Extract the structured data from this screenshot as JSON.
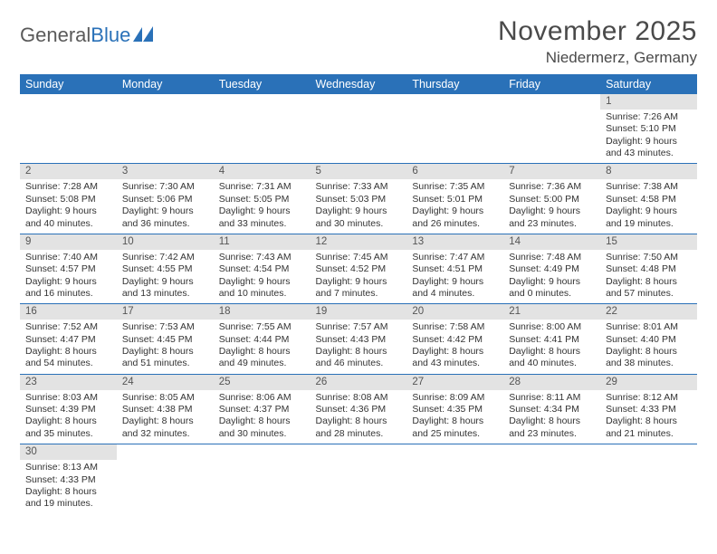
{
  "logo": {
    "part1": "General",
    "part2": "Blue"
  },
  "title": "November 2025",
  "location": "Niedermerz, Germany",
  "colors": {
    "header_bg": "#2a71b8",
    "header_fg": "#ffffff",
    "daynum_bg": "#e3e3e3",
    "row_border": "#2a71b8",
    "text": "#333333",
    "logo_gray": "#5a5a5a",
    "logo_blue": "#2a71b8"
  },
  "fonts": {
    "title_size_pt": 22,
    "location_size_pt": 13,
    "header_size_pt": 9.5,
    "cell_size_pt": 8
  },
  "weekdays": [
    "Sunday",
    "Monday",
    "Tuesday",
    "Wednesday",
    "Thursday",
    "Friday",
    "Saturday"
  ],
  "weeks": [
    [
      null,
      null,
      null,
      null,
      null,
      null,
      {
        "n": "1",
        "sr": "Sunrise: 7:26 AM",
        "ss": "Sunset: 5:10 PM",
        "d1": "Daylight: 9 hours",
        "d2": "and 43 minutes."
      }
    ],
    [
      {
        "n": "2",
        "sr": "Sunrise: 7:28 AM",
        "ss": "Sunset: 5:08 PM",
        "d1": "Daylight: 9 hours",
        "d2": "and 40 minutes."
      },
      {
        "n": "3",
        "sr": "Sunrise: 7:30 AM",
        "ss": "Sunset: 5:06 PM",
        "d1": "Daylight: 9 hours",
        "d2": "and 36 minutes."
      },
      {
        "n": "4",
        "sr": "Sunrise: 7:31 AM",
        "ss": "Sunset: 5:05 PM",
        "d1": "Daylight: 9 hours",
        "d2": "and 33 minutes."
      },
      {
        "n": "5",
        "sr": "Sunrise: 7:33 AM",
        "ss": "Sunset: 5:03 PM",
        "d1": "Daylight: 9 hours",
        "d2": "and 30 minutes."
      },
      {
        "n": "6",
        "sr": "Sunrise: 7:35 AM",
        "ss": "Sunset: 5:01 PM",
        "d1": "Daylight: 9 hours",
        "d2": "and 26 minutes."
      },
      {
        "n": "7",
        "sr": "Sunrise: 7:36 AM",
        "ss": "Sunset: 5:00 PM",
        "d1": "Daylight: 9 hours",
        "d2": "and 23 minutes."
      },
      {
        "n": "8",
        "sr": "Sunrise: 7:38 AM",
        "ss": "Sunset: 4:58 PM",
        "d1": "Daylight: 9 hours",
        "d2": "and 19 minutes."
      }
    ],
    [
      {
        "n": "9",
        "sr": "Sunrise: 7:40 AM",
        "ss": "Sunset: 4:57 PM",
        "d1": "Daylight: 9 hours",
        "d2": "and 16 minutes."
      },
      {
        "n": "10",
        "sr": "Sunrise: 7:42 AM",
        "ss": "Sunset: 4:55 PM",
        "d1": "Daylight: 9 hours",
        "d2": "and 13 minutes."
      },
      {
        "n": "11",
        "sr": "Sunrise: 7:43 AM",
        "ss": "Sunset: 4:54 PM",
        "d1": "Daylight: 9 hours",
        "d2": "and 10 minutes."
      },
      {
        "n": "12",
        "sr": "Sunrise: 7:45 AM",
        "ss": "Sunset: 4:52 PM",
        "d1": "Daylight: 9 hours",
        "d2": "and 7 minutes."
      },
      {
        "n": "13",
        "sr": "Sunrise: 7:47 AM",
        "ss": "Sunset: 4:51 PM",
        "d1": "Daylight: 9 hours",
        "d2": "and 4 minutes."
      },
      {
        "n": "14",
        "sr": "Sunrise: 7:48 AM",
        "ss": "Sunset: 4:49 PM",
        "d1": "Daylight: 9 hours",
        "d2": "and 0 minutes."
      },
      {
        "n": "15",
        "sr": "Sunrise: 7:50 AM",
        "ss": "Sunset: 4:48 PM",
        "d1": "Daylight: 8 hours",
        "d2": "and 57 minutes."
      }
    ],
    [
      {
        "n": "16",
        "sr": "Sunrise: 7:52 AM",
        "ss": "Sunset: 4:47 PM",
        "d1": "Daylight: 8 hours",
        "d2": "and 54 minutes."
      },
      {
        "n": "17",
        "sr": "Sunrise: 7:53 AM",
        "ss": "Sunset: 4:45 PM",
        "d1": "Daylight: 8 hours",
        "d2": "and 51 minutes."
      },
      {
        "n": "18",
        "sr": "Sunrise: 7:55 AM",
        "ss": "Sunset: 4:44 PM",
        "d1": "Daylight: 8 hours",
        "d2": "and 49 minutes."
      },
      {
        "n": "19",
        "sr": "Sunrise: 7:57 AM",
        "ss": "Sunset: 4:43 PM",
        "d1": "Daylight: 8 hours",
        "d2": "and 46 minutes."
      },
      {
        "n": "20",
        "sr": "Sunrise: 7:58 AM",
        "ss": "Sunset: 4:42 PM",
        "d1": "Daylight: 8 hours",
        "d2": "and 43 minutes."
      },
      {
        "n": "21",
        "sr": "Sunrise: 8:00 AM",
        "ss": "Sunset: 4:41 PM",
        "d1": "Daylight: 8 hours",
        "d2": "and 40 minutes."
      },
      {
        "n": "22",
        "sr": "Sunrise: 8:01 AM",
        "ss": "Sunset: 4:40 PM",
        "d1": "Daylight: 8 hours",
        "d2": "and 38 minutes."
      }
    ],
    [
      {
        "n": "23",
        "sr": "Sunrise: 8:03 AM",
        "ss": "Sunset: 4:39 PM",
        "d1": "Daylight: 8 hours",
        "d2": "and 35 minutes."
      },
      {
        "n": "24",
        "sr": "Sunrise: 8:05 AM",
        "ss": "Sunset: 4:38 PM",
        "d1": "Daylight: 8 hours",
        "d2": "and 32 minutes."
      },
      {
        "n": "25",
        "sr": "Sunrise: 8:06 AM",
        "ss": "Sunset: 4:37 PM",
        "d1": "Daylight: 8 hours",
        "d2": "and 30 minutes."
      },
      {
        "n": "26",
        "sr": "Sunrise: 8:08 AM",
        "ss": "Sunset: 4:36 PM",
        "d1": "Daylight: 8 hours",
        "d2": "and 28 minutes."
      },
      {
        "n": "27",
        "sr": "Sunrise: 8:09 AM",
        "ss": "Sunset: 4:35 PM",
        "d1": "Daylight: 8 hours",
        "d2": "and 25 minutes."
      },
      {
        "n": "28",
        "sr": "Sunrise: 8:11 AM",
        "ss": "Sunset: 4:34 PM",
        "d1": "Daylight: 8 hours",
        "d2": "and 23 minutes."
      },
      {
        "n": "29",
        "sr": "Sunrise: 8:12 AM",
        "ss": "Sunset: 4:33 PM",
        "d1": "Daylight: 8 hours",
        "d2": "and 21 minutes."
      }
    ],
    [
      {
        "n": "30",
        "sr": "Sunrise: 8:13 AM",
        "ss": "Sunset: 4:33 PM",
        "d1": "Daylight: 8 hours",
        "d2": "and 19 minutes."
      },
      null,
      null,
      null,
      null,
      null,
      null
    ]
  ]
}
